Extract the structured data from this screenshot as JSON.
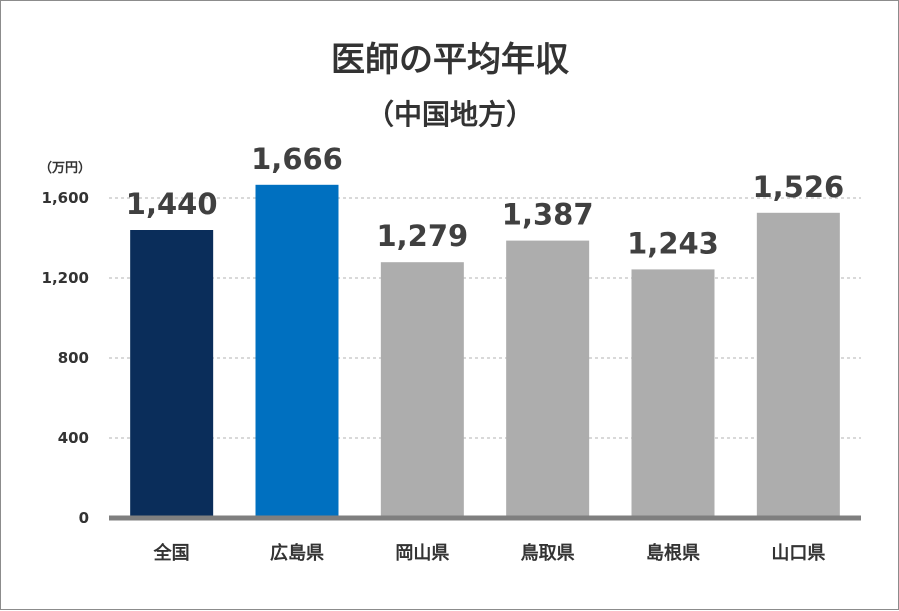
{
  "chart_data": {
    "type": "bar",
    "title": "医師の平均年収",
    "subtitle": "（中国地方）",
    "unit_label": "（万円）",
    "categories": [
      "全国",
      "広島県",
      "岡山県",
      "鳥取県",
      "島根県",
      "山口県"
    ],
    "values": [
      1440,
      1666,
      1279,
      1387,
      1243,
      1526
    ],
    "value_labels": [
      "1,440",
      "1,666",
      "1,279",
      "1,387",
      "1,243",
      "1,526"
    ],
    "y_ticks": [
      0,
      400,
      800,
      1200,
      1600
    ],
    "y_tick_labels": [
      "0",
      "400",
      "800",
      "1,200",
      "1,600"
    ],
    "ylim": [
      0,
      1600
    ],
    "grid": true,
    "bar_colors": [
      "#0a2d5a",
      "#0070c0",
      "#adadad",
      "#adadad",
      "#adadad",
      "#adadad"
    ],
    "axis_color": "#7f7f7f"
  }
}
